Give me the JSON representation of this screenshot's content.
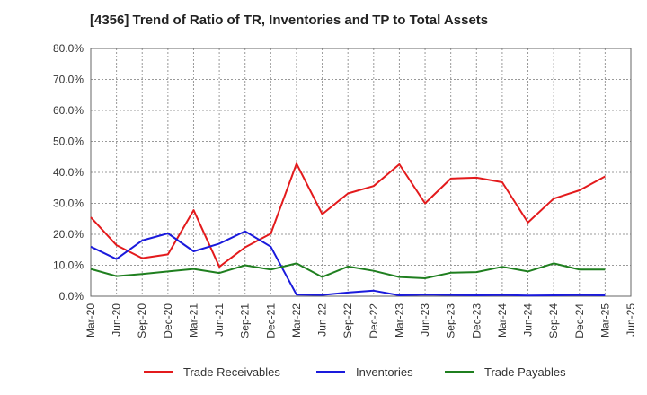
{
  "chart_data": {
    "type": "line",
    "title": "[4356]  Trend of Ratio of TR, Inventories and TP to Total Assets",
    "xlabel": "",
    "ylabel": "",
    "categories": [
      "Mar-20",
      "Jun-20",
      "Sep-20",
      "Dec-20",
      "Mar-21",
      "Jun-21",
      "Sep-21",
      "Dec-21",
      "Mar-22",
      "Jun-22",
      "Sep-22",
      "Dec-22",
      "Mar-23",
      "Jun-23",
      "Sep-23",
      "Dec-23",
      "Mar-24",
      "Jun-24",
      "Sep-24",
      "Dec-24",
      "Mar-25",
      "Jun-25"
    ],
    "ylim": [
      0,
      80
    ],
    "yticks": [
      0,
      10,
      20,
      30,
      40,
      50,
      60,
      70,
      80
    ],
    "ytick_labels": [
      "0.0%",
      "10.0%",
      "20.0%",
      "30.0%",
      "40.0%",
      "50.0%",
      "60.0%",
      "70.0%",
      "80.0%"
    ],
    "grid": true,
    "legend_position": "bottom",
    "series": [
      {
        "name": "Trade Receivables",
        "color": "#e31a1c",
        "values": [
          25.5,
          16.5,
          12.3,
          13.5,
          27.8,
          9.5,
          15.8,
          20.2,
          42.8,
          26.5,
          33.2,
          35.6,
          42.6,
          30.0,
          38.0,
          38.3,
          36.8,
          23.8,
          31.5,
          34.2,
          38.7,
          null
        ]
      },
      {
        "name": "Inventories",
        "color": "#1a1adc",
        "values": [
          16.0,
          12.0,
          18.0,
          20.3,
          14.5,
          17.0,
          21.0,
          16.0,
          0.5,
          0.4,
          1.2,
          1.8,
          0.3,
          0.5,
          0.4,
          0.3,
          0.4,
          0.2,
          0.3,
          0.4,
          0.3,
          null
        ]
      },
      {
        "name": "Trade Payables",
        "color": "#1f7f1f",
        "values": [
          8.8,
          6.5,
          7.2,
          8.0,
          8.8,
          7.5,
          10.0,
          8.6,
          10.6,
          6.2,
          9.6,
          8.2,
          6.2,
          5.8,
          7.6,
          7.8,
          9.5,
          8.0,
          10.6,
          8.6,
          8.6,
          null
        ]
      }
    ]
  }
}
